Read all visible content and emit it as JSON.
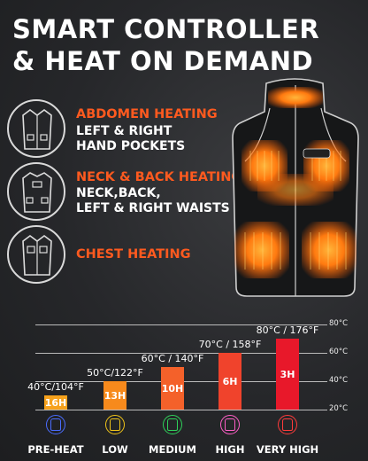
{
  "header": {
    "line1": "SMART CONTROLLER",
    "line2": "& HEAT ON DEMAND"
  },
  "features": [
    {
      "icon": "abdomen-vest-icon",
      "heading": "ABDOMEN HEATING",
      "sub1": "LEFT & RIGHT",
      "sub2": "HAND POCKETS"
    },
    {
      "icon": "back-vest-icon",
      "heading": "NECK & BACK HEATING",
      "sub1": "NECK,BACK,",
      "sub2": "LEFT & RIGHT WAISTS"
    },
    {
      "icon": "chest-vest-icon",
      "heading": "CHEST HEATING",
      "sub1": "",
      "sub2": ""
    }
  ],
  "colors": {
    "accent": "#ff5a1f",
    "heat": "#ff8a1e"
  },
  "chart_data": {
    "type": "bar",
    "categories": [
      "PRE-HEAT",
      "LOW",
      "MEDIUM",
      "HIGH",
      "VERY HIGH"
    ],
    "values": [
      40,
      50,
      60,
      70,
      80
    ],
    "bar_labels": [
      "16H",
      "13H",
      "10H",
      "6H",
      "3H"
    ],
    "temp_labels": [
      "40°C/104°F",
      "50°C/122°F",
      "60°C / 140°F",
      "70°C / 158°F",
      "80°C / 176°F"
    ],
    "colors": [
      "#f7a21c",
      "#f78a1c",
      "#f4612a",
      "#f0432c",
      "#e8182a"
    ],
    "icon_colors": [
      "#4a6cff",
      "#f0c419",
      "#2fd15a",
      "#ff5fc8",
      "#ff3b3b"
    ],
    "yticks": [
      "80°C",
      "60°C",
      "40°C",
      "20°C"
    ],
    "tick_values": [
      80,
      60,
      40,
      20
    ],
    "ylim": [
      20,
      80
    ],
    "grid": true
  }
}
